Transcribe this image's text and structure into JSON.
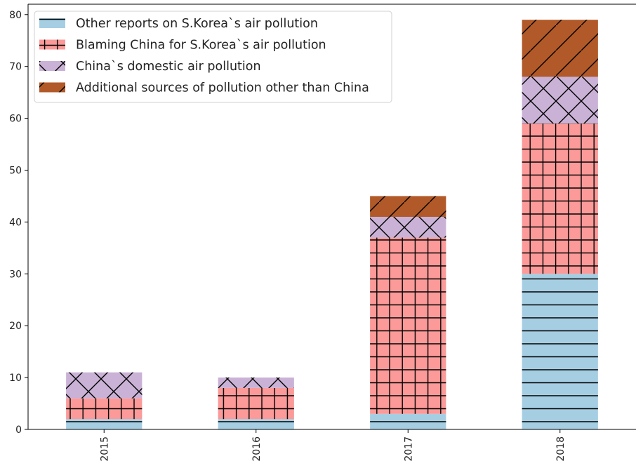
{
  "chart_data": {
    "type": "bar",
    "stacked": true,
    "categories": [
      "2015",
      "2016",
      "2017",
      "2018"
    ],
    "series": [
      {
        "name": "Other reports on S.Korea`s air pollution",
        "values": [
          2,
          2,
          3,
          30
        ],
        "color": "#a6cee3",
        "hatch": "horizontal-lines"
      },
      {
        "name": "Blaming China for S.Korea`s air pollution",
        "values": [
          4,
          6,
          34,
          29
        ],
        "color": "#fb9a99",
        "hatch": "grid"
      },
      {
        "name": "China`s domestic air pollution",
        "values": [
          5,
          2,
          4,
          9
        ],
        "color": "#cab2d6",
        "hatch": "cross-diagonal"
      },
      {
        "name": "Additional sources of pollution other than China",
        "values": [
          0,
          0,
          4,
          11
        ],
        "color": "#b15928",
        "hatch": "diagonal"
      }
    ],
    "ylim": [
      0,
      82
    ],
    "yticks": [
      0,
      10,
      20,
      30,
      40,
      50,
      60,
      70,
      80
    ],
    "xtick_rotation": 90,
    "grid": false,
    "legend_position": "upper-left",
    "title": "",
    "xlabel": "",
    "ylabel": ""
  }
}
